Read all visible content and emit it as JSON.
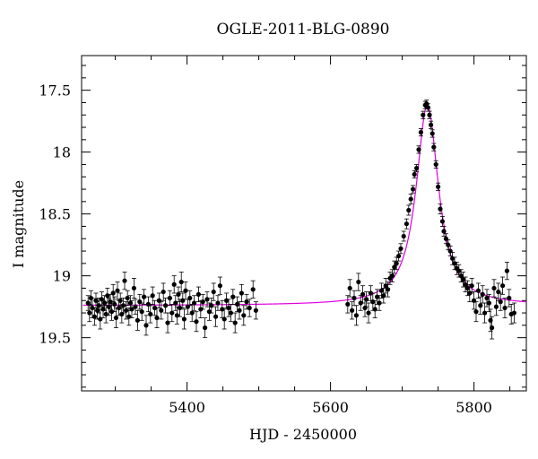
{
  "chart_data": {
    "type": "scatter",
    "title": "OGLE-2011-BLG-0890",
    "xlabel": "HJD - 2450000",
    "ylabel": "I magnitude",
    "xlim": [
      5253,
      5873
    ],
    "ylim": [
      19.93,
      17.22
    ],
    "y_inverted": true,
    "x_ticks": [
      5400,
      5600,
      5800
    ],
    "y_ticks": [
      17.5,
      18,
      18.5,
      19,
      19.5
    ],
    "grid": false,
    "series": [
      {
        "marker": "filled-circle",
        "color": "#000000",
        "error_bars": true,
        "points": [
          [
            5262,
            19.22,
            0.06
          ],
          [
            5264,
            19.3,
            0.07
          ],
          [
            5266,
            19.18,
            0.06
          ],
          [
            5268,
            19.26,
            0.08
          ],
          [
            5271,
            19.33,
            0.07
          ],
          [
            5273,
            19.2,
            0.06
          ],
          [
            5275,
            19.28,
            0.07
          ],
          [
            5277,
            19.24,
            0.06
          ],
          [
            5279,
            19.35,
            0.08
          ],
          [
            5281,
            19.19,
            0.06
          ],
          [
            5283,
            19.27,
            0.07
          ],
          [
            5285,
            19.22,
            0.06
          ],
          [
            5287,
            19.31,
            0.07
          ],
          [
            5289,
            19.16,
            0.06
          ],
          [
            5291,
            19.25,
            0.07
          ],
          [
            5293,
            19.21,
            0.06
          ],
          [
            5295,
            19.29,
            0.07
          ],
          [
            5297,
            19.14,
            0.07
          ],
          [
            5299,
            19.23,
            0.06
          ],
          [
            5301,
            19.34,
            0.08
          ],
          [
            5303,
            19.12,
            0.07
          ],
          [
            5305,
            19.26,
            0.06
          ],
          [
            5307,
            19.2,
            0.06
          ],
          [
            5309,
            19.31,
            0.07
          ],
          [
            5311,
            19.24,
            0.06
          ],
          [
            5313,
            19.04,
            0.07
          ],
          [
            5315,
            19.28,
            0.07
          ],
          [
            5317,
            19.18,
            0.06
          ],
          [
            5319,
            19.33,
            0.07
          ],
          [
            5321,
            19.22,
            0.06
          ],
          [
            5323,
            19.27,
            0.07
          ],
          [
            5326,
            19.1,
            0.08
          ],
          [
            5328,
            19.25,
            0.06
          ],
          [
            5331,
            19.36,
            0.08
          ],
          [
            5334,
            19.21,
            0.06
          ],
          [
            5337,
            19.29,
            0.07
          ],
          [
            5340,
            19.17,
            0.06
          ],
          [
            5343,
            19.4,
            0.08
          ],
          [
            5346,
            19.23,
            0.06
          ],
          [
            5349,
            19.31,
            0.07
          ],
          [
            5352,
            19.16,
            0.07
          ],
          [
            5355,
            19.26,
            0.06
          ],
          [
            5358,
            19.34,
            0.08
          ],
          [
            5361,
            19.2,
            0.06
          ],
          [
            5364,
            19.28,
            0.07
          ],
          [
            5367,
            19.13,
            0.07
          ],
          [
            5370,
            19.24,
            0.06
          ],
          [
            5373,
            19.38,
            0.08
          ],
          [
            5376,
            19.18,
            0.06
          ],
          [
            5379,
            19.3,
            0.07
          ],
          [
            5382,
            19.07,
            0.07
          ],
          [
            5384,
            19.22,
            0.06
          ],
          [
            5386,
            19.32,
            0.07
          ],
          [
            5388,
            19.15,
            0.06
          ],
          [
            5390,
            19.26,
            0.07
          ],
          [
            5392,
            19.05,
            0.08
          ],
          [
            5394,
            19.2,
            0.06
          ],
          [
            5396,
            19.35,
            0.08
          ],
          [
            5398,
            19.12,
            0.07
          ],
          [
            5401,
            19.25,
            0.06
          ],
          [
            5404,
            19.18,
            0.06
          ],
          [
            5407,
            19.3,
            0.07
          ],
          [
            5410,
            19.22,
            0.06
          ],
          [
            5413,
            19.37,
            0.08
          ],
          [
            5416,
            19.15,
            0.06
          ],
          [
            5419,
            19.27,
            0.07
          ],
          [
            5422,
            19.21,
            0.06
          ],
          [
            5425,
            19.42,
            0.08
          ],
          [
            5428,
            19.19,
            0.06
          ],
          [
            5431,
            19.29,
            0.07
          ],
          [
            5434,
            19.24,
            0.06
          ],
          [
            5437,
            19.13,
            0.07
          ],
          [
            5440,
            19.33,
            0.08
          ],
          [
            5443,
            19.22,
            0.06
          ],
          [
            5446,
            19.08,
            0.07
          ],
          [
            5449,
            19.27,
            0.07
          ],
          [
            5452,
            19.35,
            0.08
          ],
          [
            5455,
            19.2,
            0.06
          ],
          [
            5458,
            19.26,
            0.07
          ],
          [
            5461,
            19.3,
            0.07
          ],
          [
            5464,
            19.17,
            0.06
          ],
          [
            5467,
            19.38,
            0.08
          ],
          [
            5470,
            19.23,
            0.06
          ],
          [
            5473,
            19.28,
            0.07
          ],
          [
            5476,
            19.14,
            0.07
          ],
          [
            5479,
            19.32,
            0.08
          ],
          [
            5483,
            19.21,
            0.06
          ],
          [
            5487,
            19.26,
            0.07
          ],
          [
            5492,
            19.11,
            0.07
          ],
          [
            5496,
            19.28,
            0.07
          ],
          [
            5624,
            19.23,
            0.07
          ],
          [
            5627,
            19.1,
            0.07
          ],
          [
            5630,
            19.28,
            0.07
          ],
          [
            5633,
            19.18,
            0.06
          ],
          [
            5636,
            19.32,
            0.08
          ],
          [
            5639,
            19.05,
            0.07
          ],
          [
            5642,
            19.22,
            0.06
          ],
          [
            5645,
            19.15,
            0.07
          ],
          [
            5648,
            19.26,
            0.07
          ],
          [
            5650,
            19.19,
            0.06
          ],
          [
            5653,
            19.3,
            0.08
          ],
          [
            5656,
            19.14,
            0.06
          ],
          [
            5659,
            19.21,
            0.07
          ],
          [
            5662,
            19.27,
            0.07
          ],
          [
            5665,
            19.17,
            0.06
          ],
          [
            5668,
            19.22,
            0.06
          ],
          [
            5671,
            19.12,
            0.06
          ],
          [
            5674,
            19.16,
            0.06
          ],
          [
            5677,
            19.08,
            0.06
          ],
          [
            5680,
            19.11,
            0.06
          ],
          [
            5683,
            19.02,
            0.05
          ],
          [
            5686,
            19.0,
            0.05
          ],
          [
            5689,
            18.93,
            0.05
          ],
          [
            5692,
            18.9,
            0.05
          ],
          [
            5695,
            18.84,
            0.04
          ],
          [
            5698,
            18.78,
            0.04
          ],
          [
            5702,
            18.68,
            0.04
          ],
          [
            5706,
            18.58,
            0.04
          ],
          [
            5709,
            18.47,
            0.04
          ],
          [
            5712,
            18.38,
            0.04
          ],
          [
            5715,
            18.3,
            0.03
          ],
          [
            5717,
            18.18,
            0.03
          ],
          [
            5720,
            18.13,
            0.03
          ],
          [
            5723,
            17.98,
            0.03
          ],
          [
            5726,
            17.84,
            0.03
          ],
          [
            5729,
            17.7,
            0.03
          ],
          [
            5732,
            17.62,
            0.03
          ],
          [
            5734,
            17.61,
            0.03
          ],
          [
            5736,
            17.64,
            0.03
          ],
          [
            5738,
            17.7,
            0.03
          ],
          [
            5740,
            17.78,
            0.03
          ],
          [
            5742,
            17.85,
            0.03
          ],
          [
            5744,
            17.96,
            0.03
          ],
          [
            5747,
            18.1,
            0.03
          ],
          [
            5750,
            18.28,
            0.03
          ],
          [
            5753,
            18.46,
            0.04
          ],
          [
            5756,
            18.56,
            0.04
          ],
          [
            5758,
            18.64,
            0.04
          ],
          [
            5761,
            18.7,
            0.04
          ],
          [
            5764,
            18.75,
            0.04
          ],
          [
            5767,
            18.8,
            0.04
          ],
          [
            5770,
            18.86,
            0.05
          ],
          [
            5773,
            18.9,
            0.05
          ],
          [
            5776,
            18.94,
            0.05
          ],
          [
            5779,
            18.96,
            0.05
          ],
          [
            5782,
            19.0,
            0.05
          ],
          [
            5785,
            19.03,
            0.06
          ],
          [
            5788,
            19.07,
            0.06
          ],
          [
            5791,
            19.1,
            0.06
          ],
          [
            5794,
            19.14,
            0.07
          ],
          [
            5797,
            19.08,
            0.06
          ],
          [
            5800,
            19.2,
            0.07
          ],
          [
            5803,
            19.29,
            0.08
          ],
          [
            5806,
            19.12,
            0.06
          ],
          [
            5809,
            19.24,
            0.07
          ],
          [
            5812,
            19.15,
            0.07
          ],
          [
            5815,
            19.3,
            0.08
          ],
          [
            5818,
            19.18,
            0.07
          ],
          [
            5821,
            19.22,
            0.07
          ],
          [
            5823,
            19.36,
            0.09
          ],
          [
            5825,
            19.42,
            0.09
          ],
          [
            5828,
            19.1,
            0.07
          ],
          [
            5831,
            19.25,
            0.07
          ],
          [
            5834,
            19.13,
            0.07
          ],
          [
            5837,
            19.21,
            0.07
          ],
          [
            5840,
            19.08,
            0.07
          ],
          [
            5843,
            19.26,
            0.08
          ],
          [
            5846,
            18.96,
            0.07
          ],
          [
            5849,
            19.18,
            0.07
          ],
          [
            5852,
            19.31,
            0.08
          ],
          [
            5856,
            19.3,
            0.08
          ]
        ]
      },
      {
        "type": "line",
        "color": "#e000e0",
        "model": {
          "baseline": 19.24,
          "peak": 17.62,
          "t0": 5735,
          "width": 28
        }
      }
    ]
  }
}
